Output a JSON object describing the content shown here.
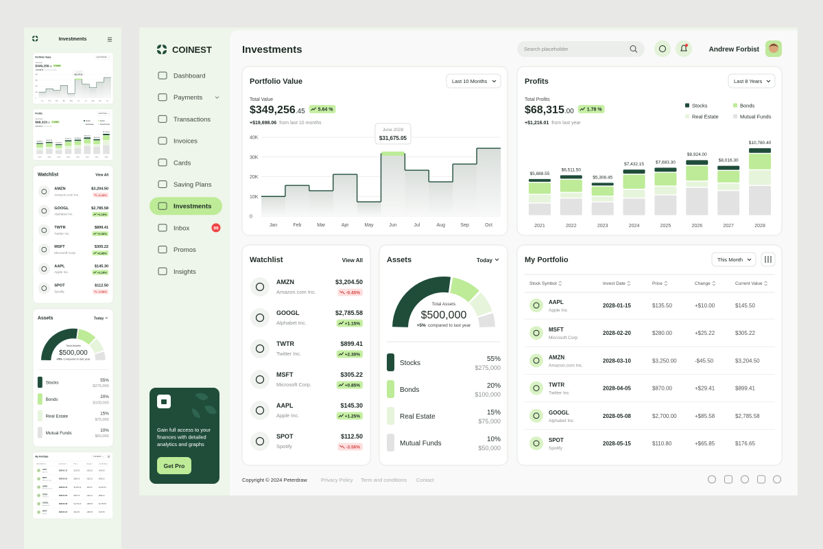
{
  "brand": "COINEST",
  "nav": [
    {
      "label": "Dashboard"
    },
    {
      "label": "Payments",
      "expandable": true
    },
    {
      "label": "Transactions"
    },
    {
      "label": "Invoices"
    },
    {
      "label": "Cards"
    },
    {
      "label": "Saving Plans"
    },
    {
      "label": "Investments",
      "active": true
    },
    {
      "label": "Inbox",
      "badge": "99"
    },
    {
      "label": "Promos"
    },
    {
      "label": "Insights"
    }
  ],
  "promo": {
    "text": [
      "Gain full access to your",
      "finances with detailed",
      "analytics and graphs"
    ],
    "button": "Get Pro"
  },
  "header": {
    "title": "Investments",
    "search_placeholder": "Search placeholder",
    "user_name": "Andrew Forbist"
  },
  "portfolio_value": {
    "title": "Portfolio Value",
    "period": "Last 10 Months",
    "total_label": "Total Value",
    "total": "$349,256",
    "total_cents": ".45",
    "change": "5.64 %",
    "delta": "+$19,698.06",
    "delta_text": "from last 10 months",
    "chart": {
      "type": "line",
      "step": true,
      "color": "#1f4d3a",
      "grid": true,
      "categories": [
        "Jan",
        "Feb",
        "Mar",
        "Apr",
        "May",
        "Jun",
        "Jul",
        "Aug",
        "Sep",
        "Oct"
      ],
      "values": [
        10000,
        15600,
        12900,
        21200,
        7300,
        31675.05,
        23300,
        17400,
        26400,
        34400
      ],
      "ylim": [
        0,
        40000
      ],
      "yticks": [
        0,
        {
          "value": 10000,
          "label": "10K"
        },
        {
          "value": 20000,
          "label": "20K"
        },
        {
          "value": 30000,
          "label": "30K"
        },
        {
          "value": 40000,
          "label": "40K"
        }
      ],
      "tooltip": {
        "at": "Jun",
        "title": "June 2028",
        "label": "$31,675.05"
      }
    }
  },
  "profits": {
    "title": "Profits",
    "period": "Last 8 Years",
    "total_label": "Total Profits",
    "total": "$68,315",
    "total_cents": ".00",
    "change": "1.78 %",
    "delta": "+$1,216.01",
    "delta_text": "from last year",
    "chart": {
      "type": "bar",
      "stacked": true,
      "categories": [
        "2021",
        "2022",
        "2023",
        "2024",
        "2025",
        "2026",
        "2027",
        "2028"
      ],
      "series": [
        {
          "name": "Stocks",
          "color": "#1f4d3a",
          "values": [
            600,
            700,
            600,
            800,
            800,
            900,
            800,
            900
          ]
        },
        {
          "name": "Bonds",
          "color": "#bdeb97",
          "values": [
            1900,
            2100,
            1600,
            2400,
            2200,
            2500,
            2000,
            2600
          ]
        },
        {
          "name": "Real Estate",
          "color": "#e6f4dc",
          "values": [
            1400,
            900,
            900,
            1400,
            1400,
            1000,
            1200,
            2500
          ]
        },
        {
          "name": "Mutual Funds",
          "color": "#e1e2e1",
          "values": [
            2000,
            2800,
            2200,
            2800,
            3300,
            4500,
            4000,
            4800
          ]
        }
      ],
      "totals": [
        5888.55,
        6511.5,
        5308.45,
        7432.15,
        7683.3,
        8924,
        8016.3,
        10780.4
      ],
      "total_labels": [
        "$5,888.55",
        "$6,511.50",
        "$5,308.45",
        "$7,432.15",
        "$7,683.30",
        "$8,924.00",
        "$8,016.30",
        "$10,780.40"
      ],
      "ylim": [
        0,
        12000
      ]
    }
  },
  "watchlist": {
    "title": "Watchlist",
    "action": "View All",
    "items": [
      {
        "symbol": "AMZN",
        "name": "Amazon.com Inc.",
        "price": "$3,204.50",
        "change": "-0.45%"
      },
      {
        "symbol": "GOOGL",
        "name": "Alphabet Inc.",
        "price": "$2,785.58",
        "change": "+1.15%"
      },
      {
        "symbol": "TWTR",
        "name": "Twitter Inc.",
        "price": "$899.41",
        "change": "+2.30%"
      },
      {
        "symbol": "MSFT",
        "name": "Microsoft Corp.",
        "price": "$305.22",
        "change": "+0.85%"
      },
      {
        "symbol": "AAPL",
        "name": "Apple Inc.",
        "price": "$145.30",
        "change": "+1.25%"
      },
      {
        "symbol": "SPOT",
        "name": "Spotify",
        "price": "$112.50",
        "change": "-3.56%"
      }
    ]
  },
  "assets": {
    "title": "Assets",
    "period": "Today",
    "total_label": "Total Assets",
    "total": "$500,000",
    "growth": "+5%",
    "growth_text": "compared to last year",
    "items": [
      {
        "name": "Stocks",
        "share": 55,
        "share_label": "55%",
        "amount": "$275,000",
        "color": "#1f4d3a"
      },
      {
        "name": "Bonds",
        "share": 20,
        "share_label": "20%",
        "amount": "$100,000",
        "color": "#bdeb97"
      },
      {
        "name": "Real Estate",
        "share": 15,
        "share_label": "15%",
        "amount": "$75,000",
        "color": "#e6f4dc"
      },
      {
        "name": "Mutual Funds",
        "share": 10,
        "share_label": "10%",
        "amount": "$50,000",
        "color": "#e1e2e1"
      }
    ]
  },
  "my_portfolio": {
    "title": "My Portfolio",
    "period": "This Month",
    "columns": [
      "Stock Symbol",
      "Invest Date",
      "Price",
      "Change",
      "Current Value"
    ],
    "rows": [
      {
        "symbol": "AAPL",
        "name": "Apple Inc",
        "date": "2028-01-15",
        "price": "$135.50",
        "change": "+$10.00",
        "value": "$145.50"
      },
      {
        "symbol": "MSFT",
        "name": "Microsoft Corp",
        "date": "2028-02-20",
        "price": "$280.00",
        "change": "+$25.22",
        "value": "$305.22"
      },
      {
        "symbol": "AMZN",
        "name": "Amazon.com Inc.",
        "date": "2028-03-10",
        "price": "$3,250.00",
        "change": "-$45.50",
        "value": "$3,204.50"
      },
      {
        "symbol": "TWTR",
        "name": "Twitter Inc",
        "date": "2028-04-05",
        "price": "$870.00",
        "change": "+$29.41",
        "value": "$899.41"
      },
      {
        "symbol": "GOOGL",
        "name": "Alphabet Inc",
        "date": "2028-05-08",
        "price": "$2,700.00",
        "change": "+$85.58",
        "value": "$2,785.58"
      },
      {
        "symbol": "SPOT",
        "name": "Spotify",
        "date": "2028-05-15",
        "price": "$110.80",
        "change": "+$65.85",
        "value": "$176.65"
      }
    ]
  },
  "footer": {
    "copyright": "Copyright © 2024 Peterdraw",
    "links": [
      "Privacy Policy",
      "Term and conditions",
      "Contact"
    ]
  }
}
